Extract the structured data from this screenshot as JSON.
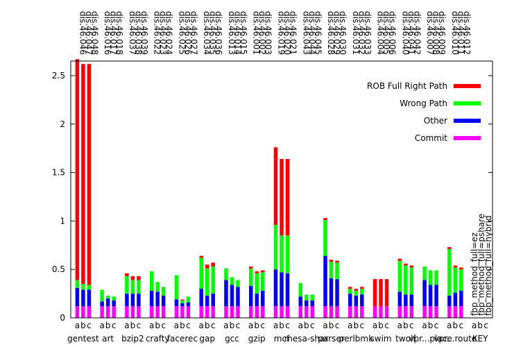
{
  "chart_data": {
    "type": "bar",
    "stacked": true,
    "ylim": [
      0,
      2.65
    ],
    "yticks": [
      "0",
      "0.5",
      "1",
      "1.5",
      "2",
      "2.5"
    ],
    "ytick_values": [
      0,
      0.5,
      1,
      1.5,
      2,
      2.5
    ],
    "sub_labels": [
      "a",
      "b",
      "c"
    ],
    "legend_placement": "top-right",
    "series": [
      {
        "name": "Commit",
        "color": "#ff00ff",
        "key": "commit"
      },
      {
        "name": "Other",
        "color": "#0000ff",
        "key": "other"
      },
      {
        "name": "Wrong Path",
        "color": "#00ff00",
        "key": "wrong"
      },
      {
        "name": "ROB Full Right Path",
        "color": "#ff0000",
        "key": "rob"
      }
    ],
    "side_labels": [
      "fbp_method_full=ez",
      "fbp_method_full=pshare",
      "fbp_method_full=hybrid"
    ],
    "groups": [
      {
        "name": "gentest",
        "top_labels": [
          "dis.46.046",
          "dis.46.047",
          "dis.46.048"
        ],
        "bars": [
          {
            "commit": 0.12,
            "other": 0.19,
            "wrong": 0.08,
            "rob": 2.28
          },
          {
            "commit": 0.12,
            "other": 0.17,
            "wrong": 0.06,
            "rob": 2.27
          },
          {
            "commit": 0.12,
            "other": 0.17,
            "wrong": 0.05,
            "rob": 2.28
          }
        ]
      },
      {
        "name": "art",
        "top_labels": [
          "dis.46.016",
          "dis.46.017",
          "dis.46.018"
        ],
        "bars": [
          {
            "commit": 0.12,
            "other": 0.05,
            "wrong": 0.12,
            "rob": 0.0
          },
          {
            "commit": 0.12,
            "other": 0.08,
            "wrong": 0.03,
            "rob": 0.0
          },
          {
            "commit": 0.12,
            "other": 0.06,
            "wrong": 0.04,
            "rob": 0.0
          }
        ]
      },
      {
        "name": "bzip2",
        "top_labels": [
          "dis.46.037",
          "dis.46.038",
          "dis.46.039"
        ],
        "bars": [
          {
            "commit": 0.12,
            "other": 0.13,
            "wrong": 0.18,
            "rob": 0.03
          },
          {
            "commit": 0.12,
            "other": 0.13,
            "wrong": 0.14,
            "rob": 0.04
          },
          {
            "commit": 0.12,
            "other": 0.13,
            "wrong": 0.14,
            "rob": 0.04
          }
        ]
      },
      {
        "name": "crafty",
        "top_labels": [
          "dis.46.022",
          "dis.46.023",
          "dis.46.024"
        ],
        "bars": [
          {
            "commit": 0.12,
            "other": 0.16,
            "wrong": 0.2,
            "rob": 0.0
          },
          {
            "commit": 0.12,
            "other": 0.15,
            "wrong": 0.1,
            "rob": 0.0
          },
          {
            "commit": 0.12,
            "other": 0.11,
            "wrong": 0.09,
            "rob": 0.0
          }
        ]
      },
      {
        "name": "facerec",
        "top_labels": [
          "dis.46.025",
          "dis.46.026",
          "dis.46.027"
        ],
        "bars": [
          {
            "commit": 0.12,
            "other": 0.07,
            "wrong": 0.25,
            "rob": 0.0
          },
          {
            "commit": 0.12,
            "other": 0.03,
            "wrong": 0.03,
            "rob": 0.01
          },
          {
            "commit": 0.12,
            "other": 0.04,
            "wrong": 0.06,
            "rob": 0.0
          }
        ]
      },
      {
        "name": "gap",
        "top_labels": [
          "dis.46.034",
          "dis.46.035",
          "dis.46.036"
        ],
        "bars": [
          {
            "commit": 0.12,
            "other": 0.18,
            "wrong": 0.32,
            "rob": 0.02
          },
          {
            "commit": 0.12,
            "other": 0.11,
            "wrong": 0.28,
            "rob": 0.04
          },
          {
            "commit": 0.12,
            "other": 0.13,
            "wrong": 0.28,
            "rob": 0.04
          }
        ]
      },
      {
        "name": "gcc",
        "top_labels": [
          "dis.46.013",
          "dis.46.014",
          "dis.46.015"
        ],
        "bars": [
          {
            "commit": 0.12,
            "other": 0.27,
            "wrong": 0.12,
            "rob": 0.0
          },
          {
            "commit": 0.12,
            "other": 0.22,
            "wrong": 0.08,
            "rob": 0.0
          },
          {
            "commit": 0.12,
            "other": 0.2,
            "wrong": 0.07,
            "rob": 0.0
          }
        ]
      },
      {
        "name": "gzip",
        "top_labels": [
          "dis.46.001",
          "dis.46.002",
          "dis.46.003"
        ],
        "bars": [
          {
            "commit": 0.12,
            "other": 0.21,
            "wrong": 0.18,
            "rob": 0.02
          },
          {
            "commit": 0.12,
            "other": 0.13,
            "wrong": 0.21,
            "rob": 0.02
          },
          {
            "commit": 0.12,
            "other": 0.16,
            "wrong": 0.19,
            "rob": 0.02
          }
        ]
      },
      {
        "name": "mcf",
        "top_labels": [
          "dis.46.019",
          "dis.46.020",
          "dis.46.021"
        ],
        "bars": [
          {
            "commit": 0.12,
            "other": 0.38,
            "wrong": 0.46,
            "rob": 0.8
          },
          {
            "commit": 0.12,
            "other": 0.35,
            "wrong": 0.38,
            "rob": 0.79
          },
          {
            "commit": 0.12,
            "other": 0.34,
            "wrong": 0.39,
            "rob": 0.79
          }
        ]
      },
      {
        "name": "mesa-shar",
        "top_labels": [
          "dis.46.043",
          "dis.46.044",
          "dis.46.045"
        ],
        "bars": [
          {
            "commit": 0.12,
            "other": 0.1,
            "wrong": 0.14,
            "rob": 0.0
          },
          {
            "commit": 0.12,
            "other": 0.06,
            "wrong": 0.06,
            "rob": 0.0
          },
          {
            "commit": 0.12,
            "other": 0.06,
            "wrong": 0.06,
            "rob": 0.0
          }
        ]
      },
      {
        "name": "parser",
        "top_labels": [
          "dis.46.028",
          "dis.46.029",
          "dis.46.030"
        ],
        "bars": [
          {
            "commit": 0.12,
            "other": 0.52,
            "wrong": 0.37,
            "rob": 0.02
          },
          {
            "commit": 0.12,
            "other": 0.29,
            "wrong": 0.17,
            "rob": 0.02
          },
          {
            "commit": 0.12,
            "other": 0.28,
            "wrong": 0.17,
            "rob": 0.02
          }
        ]
      },
      {
        "name": "perlbmk",
        "top_labels": [
          "dis.46.031",
          "dis.46.032",
          "dis.46.033"
        ],
        "bars": [
          {
            "commit": 0.12,
            "other": 0.13,
            "wrong": 0.05,
            "rob": 0.02
          },
          {
            "commit": 0.12,
            "other": 0.11,
            "wrong": 0.05,
            "rob": 0.02
          },
          {
            "commit": 0.12,
            "other": 0.12,
            "wrong": 0.06,
            "rob": 0.02
          }
        ]
      },
      {
        "name": "swim",
        "top_labels": [
          "dis.46.004",
          "dis.46.005",
          "dis.46.006"
        ],
        "bars": [
          {
            "commit": 0.12,
            "other": 0.0,
            "wrong": 0.0,
            "rob": 0.28
          },
          {
            "commit": 0.12,
            "other": 0.0,
            "wrong": 0.0,
            "rob": 0.28
          },
          {
            "commit": 0.12,
            "other": 0.0,
            "wrong": 0.0,
            "rob": 0.28
          }
        ]
      },
      {
        "name": "twolf",
        "top_labels": [
          "dis.46.040",
          "dis.46.041",
          "dis.46.042"
        ],
        "bars": [
          {
            "commit": 0.12,
            "other": 0.15,
            "wrong": 0.32,
            "rob": 0.02
          },
          {
            "commit": 0.12,
            "other": 0.12,
            "wrong": 0.3,
            "rob": 0.02
          },
          {
            "commit": 0.12,
            "other": 0.12,
            "wrong": 0.28,
            "rob": 0.02
          }
        ]
      },
      {
        "name": "vpr...place",
        "top_labels": [
          "dis.46.007",
          "dis.46.008",
          "dis.46.009"
        ],
        "bars": [
          {
            "commit": 0.12,
            "other": 0.27,
            "wrong": 0.14,
            "rob": 0.0
          },
          {
            "commit": 0.12,
            "other": 0.22,
            "wrong": 0.15,
            "rob": 0.0
          },
          {
            "commit": 0.12,
            "other": 0.22,
            "wrong": 0.15,
            "rob": 0.0
          }
        ]
      },
      {
        "name": "vpr...route",
        "top_labels": [
          "dis.46.010",
          "dis.46.011",
          "dis.46.012"
        ],
        "bars": [
          {
            "commit": 0.12,
            "other": 0.11,
            "wrong": 0.48,
            "rob": 0.02
          },
          {
            "commit": 0.12,
            "other": 0.14,
            "wrong": 0.26,
            "rob": 0.02
          },
          {
            "commit": 0.12,
            "other": 0.16,
            "wrong": 0.22,
            "rob": 0.02
          }
        ]
      },
      {
        "name": "KEY",
        "top_labels": [],
        "bars": []
      }
    ]
  }
}
